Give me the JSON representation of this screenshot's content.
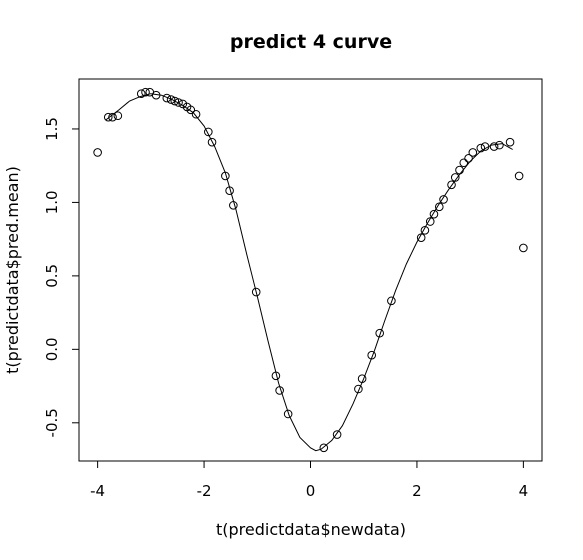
{
  "chart_data": {
    "type": "scatter",
    "title": "predict 4 curve",
    "xlabel": "t(predictdata$newdata)",
    "ylabel": "t(predictdata$pred.mean)",
    "xlim": [
      -4.35,
      4.35
    ],
    "ylim": [
      -0.76,
      1.84
    ],
    "x_ticks": [
      -4,
      -2,
      0,
      2,
      4
    ],
    "y_ticks": [
      -0.5,
      0.0,
      0.5,
      1.0,
      1.5
    ],
    "x_tick_labels": [
      "-4",
      "-2",
      "0",
      "2",
      "4"
    ],
    "y_tick_labels": [
      "-0.5",
      "0.0",
      "0.5",
      "1.0",
      "1.5"
    ],
    "points": [
      {
        "x": -4.0,
        "y": 1.34
      },
      {
        "x": -3.8,
        "y": 1.58
      },
      {
        "x": -3.72,
        "y": 1.58
      },
      {
        "x": -3.62,
        "y": 1.59
      },
      {
        "x": -3.18,
        "y": 1.74
      },
      {
        "x": -3.1,
        "y": 1.75
      },
      {
        "x": -3.02,
        "y": 1.75
      },
      {
        "x": -2.9,
        "y": 1.73
      },
      {
        "x": -2.7,
        "y": 1.71
      },
      {
        "x": -2.62,
        "y": 1.7
      },
      {
        "x": -2.55,
        "y": 1.69
      },
      {
        "x": -2.48,
        "y": 1.68
      },
      {
        "x": -2.4,
        "y": 1.67
      },
      {
        "x": -2.32,
        "y": 1.65
      },
      {
        "x": -2.25,
        "y": 1.63
      },
      {
        "x": -2.15,
        "y": 1.6
      },
      {
        "x": -1.92,
        "y": 1.48
      },
      {
        "x": -1.85,
        "y": 1.41
      },
      {
        "x": -1.6,
        "y": 1.18
      },
      {
        "x": -1.52,
        "y": 1.08
      },
      {
        "x": -1.45,
        "y": 0.98
      },
      {
        "x": -1.02,
        "y": 0.39
      },
      {
        "x": -0.65,
        "y": -0.18
      },
      {
        "x": -0.58,
        "y": -0.28
      },
      {
        "x": -0.42,
        "y": -0.44
      },
      {
        "x": 0.25,
        "y": -0.67
      },
      {
        "x": 0.5,
        "y": -0.58
      },
      {
        "x": 0.9,
        "y": -0.27
      },
      {
        "x": 0.97,
        "y": -0.2
      },
      {
        "x": 1.15,
        "y": -0.04
      },
      {
        "x": 1.3,
        "y": 0.11
      },
      {
        "x": 1.52,
        "y": 0.33
      },
      {
        "x": 2.08,
        "y": 0.76
      },
      {
        "x": 2.15,
        "y": 0.81
      },
      {
        "x": 2.25,
        "y": 0.87
      },
      {
        "x": 2.32,
        "y": 0.92
      },
      {
        "x": 2.42,
        "y": 0.97
      },
      {
        "x": 2.5,
        "y": 1.02
      },
      {
        "x": 2.65,
        "y": 1.12
      },
      {
        "x": 2.72,
        "y": 1.17
      },
      {
        "x": 2.8,
        "y": 1.22
      },
      {
        "x": 2.88,
        "y": 1.27
      },
      {
        "x": 2.97,
        "y": 1.3
      },
      {
        "x": 3.05,
        "y": 1.34
      },
      {
        "x": 3.2,
        "y": 1.37
      },
      {
        "x": 3.28,
        "y": 1.38
      },
      {
        "x": 3.45,
        "y": 1.38
      },
      {
        "x": 3.55,
        "y": 1.39
      },
      {
        "x": 3.75,
        "y": 1.41
      },
      {
        "x": 3.92,
        "y": 1.18
      },
      {
        "x": 4.0,
        "y": 0.69
      }
    ],
    "curve": [
      {
        "x": -3.85,
        "y": 1.56
      },
      {
        "x": -3.6,
        "y": 1.63
      },
      {
        "x": -3.4,
        "y": 1.69
      },
      {
        "x": -3.2,
        "y": 1.72
      },
      {
        "x": -3.0,
        "y": 1.74
      },
      {
        "x": -2.8,
        "y": 1.73
      },
      {
        "x": -2.6,
        "y": 1.7
      },
      {
        "x": -2.4,
        "y": 1.66
      },
      {
        "x": -2.2,
        "y": 1.61
      },
      {
        "x": -2.0,
        "y": 1.52
      },
      {
        "x": -1.8,
        "y": 1.38
      },
      {
        "x": -1.6,
        "y": 1.2
      },
      {
        "x": -1.4,
        "y": 0.95
      },
      {
        "x": -1.2,
        "y": 0.65
      },
      {
        "x": -1.0,
        "y": 0.36
      },
      {
        "x": -0.8,
        "y": 0.06
      },
      {
        "x": -0.6,
        "y": -0.23
      },
      {
        "x": -0.4,
        "y": -0.45
      },
      {
        "x": -0.2,
        "y": -0.6
      },
      {
        "x": 0.0,
        "y": -0.67
      },
      {
        "x": 0.1,
        "y": -0.69
      },
      {
        "x": 0.2,
        "y": -0.68
      },
      {
        "x": 0.4,
        "y": -0.62
      },
      {
        "x": 0.6,
        "y": -0.52
      },
      {
        "x": 0.8,
        "y": -0.37
      },
      {
        "x": 1.0,
        "y": -0.2
      },
      {
        "x": 1.2,
        "y": -0.01
      },
      {
        "x": 1.4,
        "y": 0.2
      },
      {
        "x": 1.6,
        "y": 0.4
      },
      {
        "x": 1.8,
        "y": 0.58
      },
      {
        "x": 2.0,
        "y": 0.73
      },
      {
        "x": 2.2,
        "y": 0.86
      },
      {
        "x": 2.4,
        "y": 0.98
      },
      {
        "x": 2.6,
        "y": 1.09
      },
      {
        "x": 2.8,
        "y": 1.19
      },
      {
        "x": 3.0,
        "y": 1.28
      },
      {
        "x": 3.2,
        "y": 1.35
      },
      {
        "x": 3.4,
        "y": 1.39
      },
      {
        "x": 3.6,
        "y": 1.4
      },
      {
        "x": 3.8,
        "y": 1.36
      }
    ],
    "point_shape": "open-circle",
    "grid": false,
    "legend": "none"
  }
}
